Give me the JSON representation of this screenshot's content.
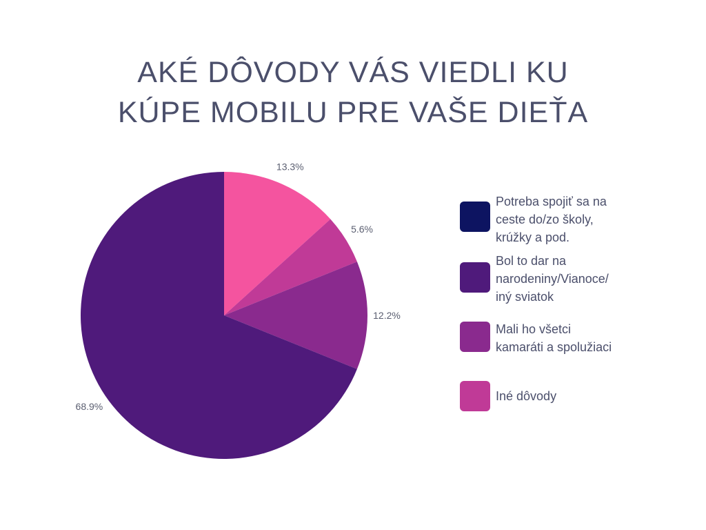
{
  "chart_data": {
    "type": "pie",
    "title_lines": [
      "AKÉ DÔVODY VÁS VIEDLI KU",
      "KÚPE MOBILU PRE VAŠE DIEŤA"
    ],
    "slices": [
      {
        "value": 13.3,
        "label": "13.3%",
        "color": "#F4549F"
      },
      {
        "value": 5.6,
        "label": "5.6%",
        "color": "#C03A97"
      },
      {
        "value": 12.2,
        "label": "12.2%",
        "color": "#8A2A8E"
      },
      {
        "value": 68.9,
        "label": "68.9%",
        "color": "#4F1A7B"
      }
    ],
    "legend": [
      {
        "label": "Potreba spojiť sa na\nceste do/zo školy,\nkrúžky a pod.",
        "color": "#0D1461"
      },
      {
        "label": "Bol to dar na\nnarodeniny/Vianoce/\niný sviatok",
        "color": "#4F1A7B"
      },
      {
        "label": "Mali ho všetci\nkamaráti a spolužiaci",
        "color": "#8A2A8E"
      },
      {
        "label": "Iné dôvody",
        "color": "#C03A97"
      }
    ],
    "legend_position": "right"
  }
}
